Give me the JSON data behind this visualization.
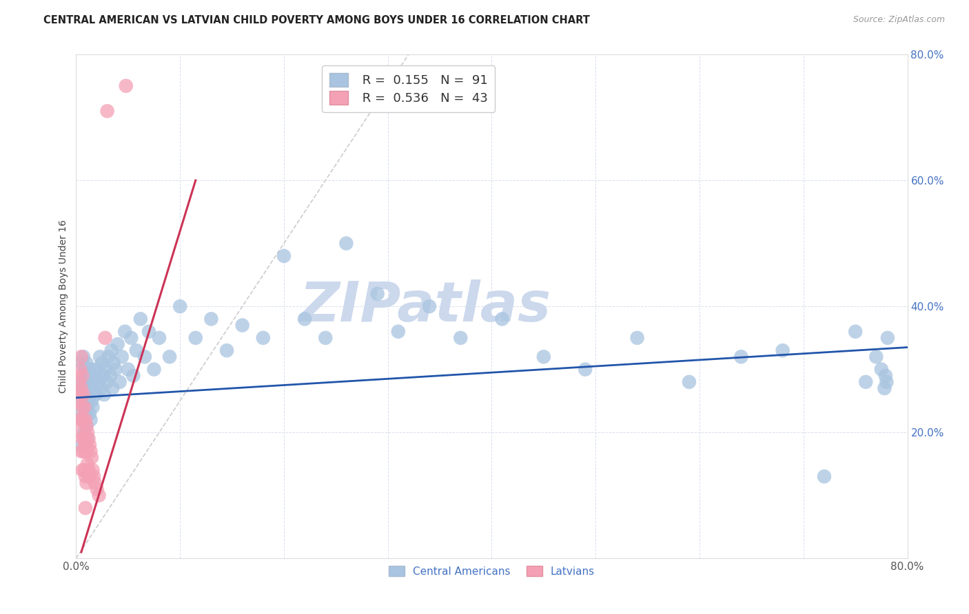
{
  "title": "CENTRAL AMERICAN VS LATVIAN CHILD POVERTY AMONG BOYS UNDER 16 CORRELATION CHART",
  "source": "Source: ZipAtlas.com",
  "ylabel": "Child Poverty Among Boys Under 16",
  "xlim": [
    0,
    0.8
  ],
  "ylim": [
    0,
    0.8
  ],
  "xtick_positions": [
    0.0,
    0.1,
    0.2,
    0.3,
    0.4,
    0.5,
    0.6,
    0.7,
    0.8
  ],
  "xticklabels": [
    "0.0%",
    "",
    "",
    "",
    "",
    "",
    "",
    "",
    "80.0%"
  ],
  "ytick_positions": [
    0.0,
    0.2,
    0.4,
    0.6,
    0.8
  ],
  "yticklabels": [
    "",
    "20.0%",
    "40.0%",
    "60.0%",
    "80.0%"
  ],
  "central_american_color": "#a8c4e0",
  "latvian_color": "#f4a0b5",
  "trend_central_color": "#2255aa",
  "trend_latvian_color": "#cc3355",
  "trend_latvian_dashed_color": "#cccccc",
  "watermark_text": "ZIPatlas",
  "watermark_color": "#ccd8ec",
  "ca_trend_x0": 0.0,
  "ca_trend_y0": 0.255,
  "ca_trend_x1": 0.8,
  "ca_trend_y1": 0.335,
  "lv_trend_solid_x0": 0.005,
  "lv_trend_solid_y0": 0.01,
  "lv_trend_solid_x1": 0.115,
  "lv_trend_solid_y1": 0.6,
  "lv_trend_dashed_x0": 0.0,
  "lv_trend_dashed_y0": 0.0,
  "lv_trend_dashed_x1": 0.32,
  "lv_trend_dashed_y1": 0.8,
  "central_american_x": [
    0.005,
    0.005,
    0.005,
    0.006,
    0.006,
    0.007,
    0.007,
    0.007,
    0.008,
    0.008,
    0.008,
    0.009,
    0.009,
    0.01,
    0.01,
    0.01,
    0.011,
    0.011,
    0.011,
    0.012,
    0.012,
    0.013,
    0.013,
    0.014,
    0.014,
    0.015,
    0.015,
    0.016,
    0.016,
    0.017,
    0.018,
    0.019,
    0.02,
    0.022,
    0.023,
    0.024,
    0.025,
    0.026,
    0.027,
    0.028,
    0.03,
    0.031,
    0.033,
    0.034,
    0.035,
    0.036,
    0.038,
    0.04,
    0.042,
    0.044,
    0.047,
    0.05,
    0.053,
    0.055,
    0.058,
    0.062,
    0.066,
    0.07,
    0.075,
    0.08,
    0.09,
    0.1,
    0.115,
    0.13,
    0.145,
    0.16,
    0.18,
    0.2,
    0.22,
    0.24,
    0.26,
    0.29,
    0.31,
    0.34,
    0.37,
    0.41,
    0.45,
    0.49,
    0.54,
    0.59,
    0.64,
    0.68,
    0.72,
    0.75,
    0.76,
    0.77,
    0.775,
    0.778,
    0.779,
    0.78,
    0.781
  ],
  "central_american_y": [
    0.28,
    0.23,
    0.18,
    0.31,
    0.25,
    0.32,
    0.27,
    0.22,
    0.3,
    0.25,
    0.2,
    0.28,
    0.23,
    0.31,
    0.26,
    0.21,
    0.29,
    0.24,
    0.19,
    0.3,
    0.25,
    0.28,
    0.23,
    0.27,
    0.22,
    0.3,
    0.25,
    0.28,
    0.24,
    0.27,
    0.29,
    0.26,
    0.3,
    0.28,
    0.32,
    0.27,
    0.31,
    0.29,
    0.26,
    0.3,
    0.28,
    0.32,
    0.29,
    0.33,
    0.27,
    0.31,
    0.3,
    0.34,
    0.28,
    0.32,
    0.36,
    0.3,
    0.35,
    0.29,
    0.33,
    0.38,
    0.32,
    0.36,
    0.3,
    0.35,
    0.32,
    0.4,
    0.35,
    0.38,
    0.33,
    0.37,
    0.35,
    0.48,
    0.38,
    0.35,
    0.5,
    0.42,
    0.36,
    0.4,
    0.35,
    0.38,
    0.32,
    0.3,
    0.35,
    0.28,
    0.32,
    0.33,
    0.13,
    0.36,
    0.28,
    0.32,
    0.3,
    0.27,
    0.29,
    0.28,
    0.35
  ],
  "latvian_x": [
    0.002,
    0.003,
    0.003,
    0.004,
    0.004,
    0.004,
    0.005,
    0.005,
    0.005,
    0.005,
    0.006,
    0.006,
    0.006,
    0.006,
    0.007,
    0.007,
    0.007,
    0.008,
    0.008,
    0.008,
    0.009,
    0.009,
    0.009,
    0.009,
    0.01,
    0.01,
    0.01,
    0.011,
    0.011,
    0.012,
    0.012,
    0.013,
    0.013,
    0.014,
    0.015,
    0.016,
    0.017,
    0.018,
    0.02,
    0.022,
    0.028,
    0.03,
    0.048
  ],
  "latvian_y": [
    0.25,
    0.28,
    0.22,
    0.3,
    0.26,
    0.2,
    0.32,
    0.27,
    0.22,
    0.17,
    0.29,
    0.24,
    0.19,
    0.14,
    0.26,
    0.22,
    0.17,
    0.24,
    0.19,
    0.14,
    0.22,
    0.18,
    0.13,
    0.08,
    0.21,
    0.17,
    0.12,
    0.2,
    0.15,
    0.19,
    0.14,
    0.18,
    0.13,
    0.17,
    0.16,
    0.14,
    0.13,
    0.12,
    0.11,
    0.1,
    0.35,
    0.71,
    0.75
  ]
}
